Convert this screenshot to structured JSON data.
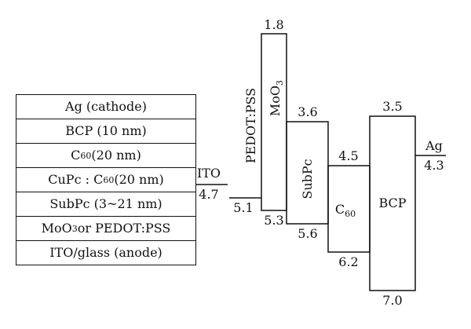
{
  "stack": {
    "layers": [
      {
        "main": "Ag (cathode)",
        "sub": "",
        "rest": ""
      },
      {
        "main": "BCP (10 nm)",
        "sub": "",
        "rest": ""
      },
      {
        "main": "C",
        "sub": "60",
        "rest": " (20 nm)"
      },
      {
        "main": "CuPc : C",
        "sub": "60",
        "rest": " (20 nm)"
      },
      {
        "main": "SubPc (3~21 nm)",
        "sub": "",
        "rest": ""
      },
      {
        "main": "MoO",
        "sub": "3",
        "rest": " or PEDOT:PSS"
      },
      {
        "main": "ITO/glass (anode)",
        "sub": "",
        "rest": ""
      }
    ]
  },
  "energy_diagram": {
    "levels": {
      "ito": {
        "name": "ITO",
        "value": "4.7"
      },
      "pedot": {
        "name": "PEDOT:PSS",
        "value": "5.1"
      },
      "moo3": {
        "name": "MoO",
        "name_sub": "3",
        "top": "1.8",
        "bottom": "5.3"
      },
      "subpc": {
        "name": "SubPc",
        "top": "3.6",
        "bottom": "5.6"
      },
      "c60": {
        "name": "C",
        "name_sub": "60",
        "top": "4.5",
        "bottom": "6.2"
      },
      "bcp": {
        "name": "BCP",
        "top": "3.5",
        "bottom": "7.0"
      },
      "ag": {
        "name": "Ag",
        "value": "4.3"
      }
    }
  }
}
